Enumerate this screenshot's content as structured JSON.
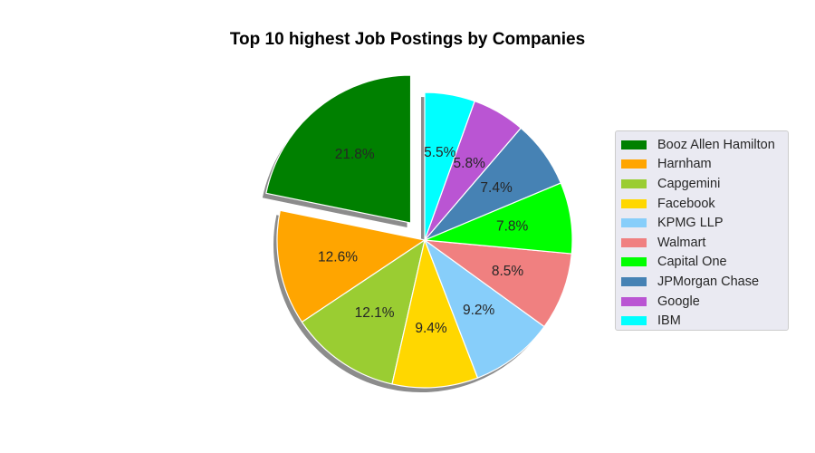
{
  "chart_data": {
    "type": "pie",
    "title": "Top 10 highest Job Postings by Companies",
    "categories": [
      "Booz Allen Hamilton",
      "Harnham",
      "Capgemini",
      "Facebook",
      "KPMG LLP",
      "Walmart",
      "Capital One",
      "JPMorgan Chase",
      "Google",
      "IBM"
    ],
    "values": [
      21.8,
      12.6,
      12.1,
      9.4,
      9.2,
      8.5,
      7.8,
      7.4,
      5.8,
      5.5
    ],
    "labels": [
      "21.8%",
      "12.6%",
      "12.1%",
      "9.4%",
      "9.2%",
      "8.5%",
      "7.8%",
      "7.4%",
      "5.8%",
      "5.5%"
    ],
    "colors": [
      "#008000",
      "#ffa500",
      "#9acd32",
      "#ffd700",
      "#87cefa",
      "#f08080",
      "#00ff00",
      "#4682b4",
      "#ba55d3",
      "#00ffff"
    ],
    "exploded": [
      "Booz Allen Hamilton"
    ],
    "shadow": true,
    "start_angle": 90,
    "direction": "counterclockwise",
    "legend": "right"
  }
}
